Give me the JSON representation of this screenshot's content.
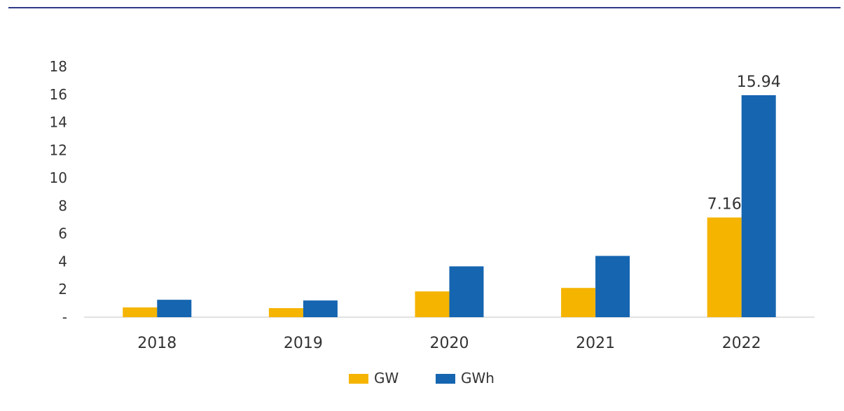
{
  "chart_data": {
    "type": "bar",
    "categories": [
      "2018",
      "2019",
      "2020",
      "2021",
      "2022"
    ],
    "series": [
      {
        "name": "GW",
        "color": "#F5B400",
        "values": [
          0.7,
          0.65,
          1.85,
          2.1,
          7.16
        ]
      },
      {
        "name": "GWh",
        "color": "#1565B0",
        "values": [
          1.25,
          1.2,
          3.65,
          4.4,
          15.94
        ]
      }
    ],
    "data_labels": [
      {
        "series": 0,
        "index": 4,
        "text": "7.16"
      },
      {
        "series": 1,
        "index": 4,
        "text": "15.94"
      }
    ],
    "yticks": [
      "-",
      "2",
      "4",
      "6",
      "8",
      "10",
      "12",
      "14",
      "16",
      "18"
    ],
    "ylim": [
      0,
      18
    ],
    "title": "",
    "xlabel": "",
    "ylabel": "",
    "grid": false,
    "legend_position": "bottom-center",
    "top_rule_color": "#2E3A87",
    "axis_color": "#D8D8D8"
  }
}
